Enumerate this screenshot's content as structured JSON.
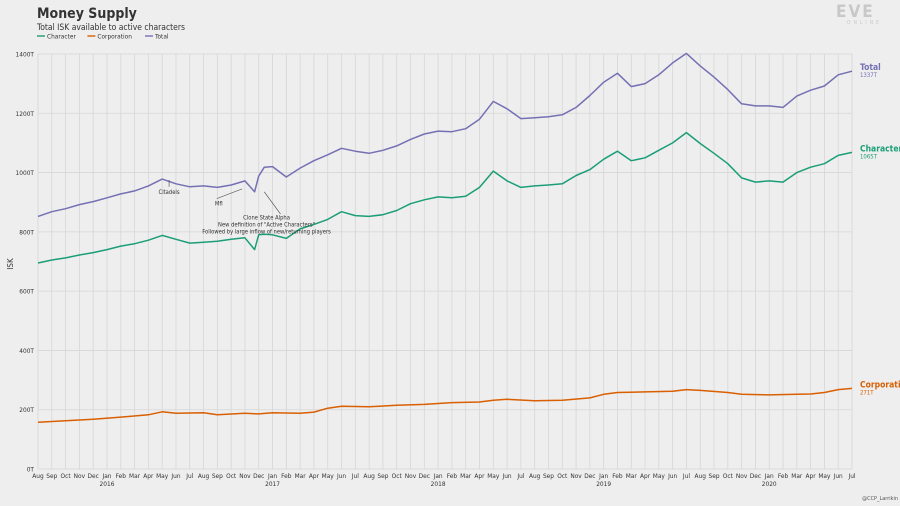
{
  "chart_data": {
    "type": "line",
    "title": "Money Supply",
    "subtitle": "Total ISK available to active characters",
    "ylabel": "ISK",
    "ylim": [
      0,
      1400
    ],
    "yticks": [
      0,
      200,
      400,
      600,
      800,
      1000,
      1200,
      1400
    ],
    "ytick_labels": [
      "0T",
      "200T",
      "400T",
      "600T",
      "800T",
      "1000T",
      "1200T",
      "1400T"
    ],
    "x_start": "2015-08",
    "x_end": "2020-07",
    "month_labels": [
      "Aug",
      "Sep",
      "Oct",
      "Nov",
      "Dec",
      "Jan",
      "Feb",
      "Mar",
      "Apr",
      "May",
      "Jun",
      "Jul",
      "Aug",
      "Sep",
      "Oct",
      "Nov",
      "Dec",
      "Jan",
      "Feb",
      "Mar",
      "Apr",
      "May",
      "Jun",
      "Jul",
      "Aug",
      "Sep",
      "Oct",
      "Nov",
      "Dec",
      "Jan",
      "Feb",
      "Mar",
      "Apr",
      "May",
      "Jun",
      "Jul",
      "Aug",
      "Sep",
      "Oct",
      "Nov",
      "Dec",
      "Jan",
      "Feb",
      "Mar",
      "Apr",
      "May",
      "Jun",
      "Jul",
      "Aug",
      "Sep",
      "Oct",
      "Nov",
      "Dec",
      "Jan",
      "Feb",
      "Mar",
      "Apr",
      "May",
      "Jun",
      "Jul"
    ],
    "year_labels": [
      {
        "label": "2016",
        "month_index": 5
      },
      {
        "label": "2017",
        "month_index": 17
      },
      {
        "label": "2018",
        "month_index": 29
      },
      {
        "label": "2019",
        "month_index": 41
      },
      {
        "label": "2020",
        "month_index": 53
      }
    ],
    "grid": true,
    "legend": "top-left",
    "series": [
      {
        "name": "Character",
        "color": "#1b9e77",
        "end_value": "1065T",
        "points": [
          [
            0,
            695
          ],
          [
            1,
            705
          ],
          [
            2,
            712
          ],
          [
            3,
            722
          ],
          [
            4,
            730
          ],
          [
            5,
            740
          ],
          [
            6,
            752
          ],
          [
            7,
            760
          ],
          [
            8,
            772
          ],
          [
            9,
            788
          ],
          [
            10,
            775
          ],
          [
            11,
            762
          ],
          [
            12,
            765
          ],
          [
            13,
            768
          ],
          [
            14,
            775
          ],
          [
            15,
            780
          ],
          [
            15.7,
            740
          ],
          [
            16,
            790
          ],
          [
            16.4,
            792
          ],
          [
            17,
            790
          ],
          [
            18,
            778
          ],
          [
            19,
            810
          ],
          [
            20,
            825
          ],
          [
            21,
            842
          ],
          [
            22,
            868
          ],
          [
            23,
            855
          ],
          [
            24,
            852
          ],
          [
            25,
            858
          ],
          [
            26,
            872
          ],
          [
            27,
            895
          ],
          [
            28,
            908
          ],
          [
            29,
            918
          ],
          [
            30,
            915
          ],
          [
            31,
            920
          ],
          [
            32,
            950
          ],
          [
            33,
            1005
          ],
          [
            34,
            972
          ],
          [
            35,
            950
          ],
          [
            36,
            955
          ],
          [
            37,
            958
          ],
          [
            38,
            962
          ],
          [
            39,
            990
          ],
          [
            40,
            1010
          ],
          [
            41,
            1045
          ],
          [
            42,
            1072
          ],
          [
            43,
            1040
          ],
          [
            44,
            1050
          ],
          [
            45,
            1075
          ],
          [
            46,
            1100
          ],
          [
            47,
            1135
          ],
          [
            48,
            1098
          ],
          [
            49,
            1065
          ],
          [
            50,
            1030
          ],
          [
            51,
            982
          ],
          [
            52,
            968
          ],
          [
            53,
            972
          ],
          [
            54,
            968
          ],
          [
            55,
            1000
          ],
          [
            56,
            1018
          ],
          [
            57,
            1030
          ],
          [
            58,
            1058
          ],
          [
            59,
            1068
          ]
        ]
      },
      {
        "name": "Corporation",
        "color": "#d95f02",
        "end_value": "271T",
        "points": [
          [
            0,
            158
          ],
          [
            2,
            163
          ],
          [
            4,
            168
          ],
          [
            6,
            175
          ],
          [
            8,
            183
          ],
          [
            9,
            193
          ],
          [
            10,
            188
          ],
          [
            12,
            190
          ],
          [
            13,
            183
          ],
          [
            15,
            188
          ],
          [
            16,
            186
          ],
          [
            17,
            190
          ],
          [
            19,
            188
          ],
          [
            20,
            192
          ],
          [
            21,
            205
          ],
          [
            22,
            212
          ],
          [
            24,
            210
          ],
          [
            26,
            215
          ],
          [
            28,
            218
          ],
          [
            30,
            224
          ],
          [
            32,
            226
          ],
          [
            33,
            232
          ],
          [
            34,
            235
          ],
          [
            36,
            230
          ],
          [
            38,
            232
          ],
          [
            40,
            240
          ],
          [
            41,
            252
          ],
          [
            42,
            258
          ],
          [
            44,
            260
          ],
          [
            46,
            262
          ],
          [
            47,
            268
          ],
          [
            48,
            265
          ],
          [
            50,
            258
          ],
          [
            51,
            252
          ],
          [
            53,
            250
          ],
          [
            55,
            252
          ],
          [
            56,
            253
          ],
          [
            57,
            258
          ],
          [
            58,
            268
          ],
          [
            59,
            272
          ]
        ]
      },
      {
        "name": "Total",
        "color": "#7570b3",
        "end_value": "1337T",
        "points": [
          [
            0,
            852
          ],
          [
            1,
            868
          ],
          [
            2,
            878
          ],
          [
            3,
            892
          ],
          [
            4,
            902
          ],
          [
            5,
            915
          ],
          [
            6,
            928
          ],
          [
            7,
            938
          ],
          [
            8,
            955
          ],
          [
            9,
            978
          ],
          [
            10,
            962
          ],
          [
            11,
            952
          ],
          [
            12,
            955
          ],
          [
            13,
            950
          ],
          [
            14,
            958
          ],
          [
            15,
            972
          ],
          [
            15.7,
            935
          ],
          [
            16,
            988
          ],
          [
            16.4,
            1018
          ],
          [
            17,
            1020
          ],
          [
            18,
            985
          ],
          [
            19,
            1015
          ],
          [
            20,
            1040
          ],
          [
            21,
            1060
          ],
          [
            22,
            1082
          ],
          [
            23,
            1072
          ],
          [
            24,
            1065
          ],
          [
            25,
            1075
          ],
          [
            26,
            1090
          ],
          [
            27,
            1112
          ],
          [
            28,
            1130
          ],
          [
            29,
            1140
          ],
          [
            30,
            1138
          ],
          [
            31,
            1148
          ],
          [
            32,
            1180
          ],
          [
            33,
            1240
          ],
          [
            34,
            1215
          ],
          [
            35,
            1182
          ],
          [
            36,
            1185
          ],
          [
            37,
            1188
          ],
          [
            38,
            1195
          ],
          [
            39,
            1220
          ],
          [
            40,
            1260
          ],
          [
            41,
            1305
          ],
          [
            42,
            1335
          ],
          [
            43,
            1290
          ],
          [
            44,
            1300
          ],
          [
            45,
            1330
          ],
          [
            46,
            1370
          ],
          [
            47,
            1402
          ],
          [
            48,
            1360
          ],
          [
            49,
            1322
          ],
          [
            50,
            1280
          ],
          [
            51,
            1232
          ],
          [
            52,
            1225
          ],
          [
            53,
            1225
          ],
          [
            54,
            1220
          ],
          [
            55,
            1258
          ],
          [
            56,
            1278
          ],
          [
            57,
            1292
          ],
          [
            58,
            1330
          ],
          [
            59,
            1342
          ]
        ]
      }
    ],
    "annotations": [
      {
        "text": "Citadels",
        "month": 9.5
      },
      {
        "text": "Mfl",
        "month": 13.1
      },
      {
        "text": "Clone State Alpha",
        "month": 17
      },
      {
        "text": "New definition of \"Active Characters\"",
        "month": 17
      },
      {
        "text": "Followed by large inflow of new/returning players",
        "month": 17
      }
    ]
  },
  "branding": {
    "logo": "EVE",
    "logo_sub": "ONLINE",
    "credit": "@CCP_Larrikin"
  },
  "legend": {
    "items": [
      {
        "label": "Character",
        "color": "#1b9e77"
      },
      {
        "label": "Corporation",
        "color": "#d95f02"
      },
      {
        "label": "Total",
        "color": "#7570b3"
      }
    ]
  }
}
